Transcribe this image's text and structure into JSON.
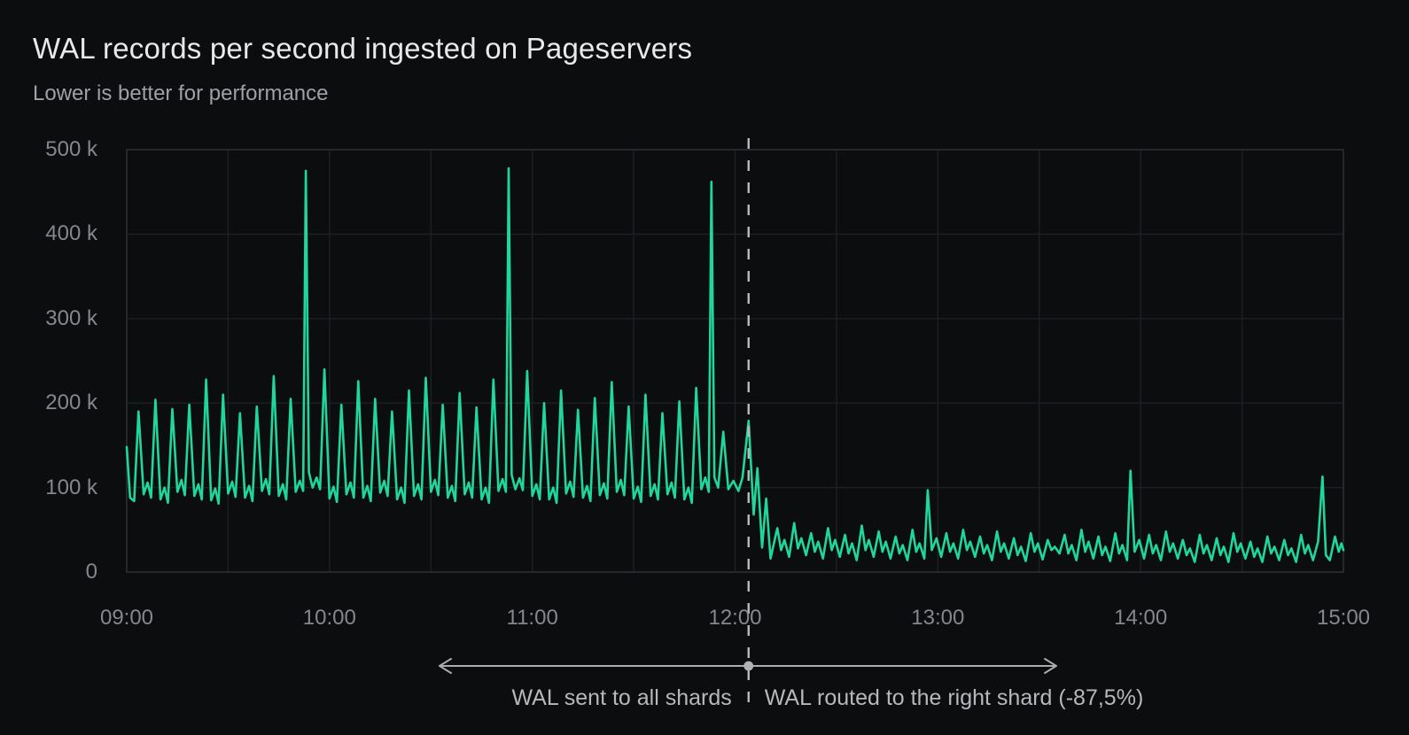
{
  "header": {
    "title": "WAL records per second ingested on Pageservers",
    "subtitle": "Lower is better for performance"
  },
  "colors": {
    "background": "#0c0d0e",
    "series_green": "#1fd79b",
    "gridline": "#1d2025",
    "plot_border": "#2b2e34",
    "axis_text": "#84878c",
    "annotation_gray": "#aaacaf",
    "divider_gray": "#b9bbbe"
  },
  "chart_data": {
    "type": "line",
    "title": "WAL records per second ingested on Pageservers",
    "subtitle": "Lower is better for performance",
    "xlabel": "",
    "ylabel": "",
    "grid": true,
    "legend": "none",
    "x_axis": {
      "unit": "time of day",
      "tick_labels": [
        "09:00",
        "10:00",
        "11:00",
        "12:00",
        "13:00",
        "14:00",
        "15:00"
      ],
      "tick_minutes": [
        0,
        60,
        120,
        180,
        240,
        300,
        360
      ],
      "gridline_interval_minutes": 30,
      "range_minutes": [
        0,
        360
      ]
    },
    "y_axis": {
      "unit": "records per second",
      "tick_labels": [
        "0",
        "100 k",
        "200 k",
        "300 k",
        "400 k",
        "500 k"
      ],
      "tick_values_k": [
        0,
        100,
        200,
        300,
        400,
        500
      ],
      "range_k": [
        0,
        500
      ]
    },
    "annotations": {
      "divider_minute": 184,
      "left_label": "WAL sent to all shards",
      "right_label": "WAL routed to the right shard (-87,5%)"
    },
    "series": [
      {
        "name": "WAL records per second",
        "color": "#1fd79b",
        "x_unit": "minutes after 09:00",
        "y_unit": "thousands of records/s",
        "points": [
          [
            0,
            148
          ],
          [
            1,
            88
          ],
          [
            2.2,
            84
          ],
          [
            3.5,
            190
          ],
          [
            5,
            92
          ],
          [
            6.2,
            106
          ],
          [
            7.2,
            88
          ],
          [
            8.5,
            204
          ],
          [
            10,
            86
          ],
          [
            11.2,
            100
          ],
          [
            12.2,
            82
          ],
          [
            13.5,
            193
          ],
          [
            15,
            95
          ],
          [
            16.2,
            109
          ],
          [
            17.2,
            91
          ],
          [
            18.5,
            198
          ],
          [
            20,
            90
          ],
          [
            21.2,
            104
          ],
          [
            22.2,
            86
          ],
          [
            23.5,
            228
          ],
          [
            25,
            85
          ],
          [
            26.2,
            99
          ],
          [
            27.2,
            81
          ],
          [
            28.5,
            210
          ],
          [
            30,
            93
          ],
          [
            31.2,
            107
          ],
          [
            32.2,
            89
          ],
          [
            33.5,
            188
          ],
          [
            35,
            88
          ],
          [
            36.2,
            102
          ],
          [
            37.2,
            84
          ],
          [
            38.5,
            196
          ],
          [
            40,
            96
          ],
          [
            41.2,
            110
          ],
          [
            42.2,
            92
          ],
          [
            43.5,
            232
          ],
          [
            45,
            90
          ],
          [
            46.2,
            104
          ],
          [
            47.2,
            86
          ],
          [
            48.5,
            205
          ],
          [
            50,
            95
          ],
          [
            51.2,
            108
          ],
          [
            52.2,
            96
          ],
          [
            53,
            475
          ],
          [
            53.9,
            118
          ],
          [
            55,
            100
          ],
          [
            56.2,
            112
          ],
          [
            57.2,
            98
          ],
          [
            58.5,
            240
          ],
          [
            60,
            87
          ],
          [
            61.2,
            101
          ],
          [
            62.2,
            83
          ],
          [
            63.5,
            198
          ],
          [
            65,
            92
          ],
          [
            66.2,
            106
          ],
          [
            67.2,
            88
          ],
          [
            68.5,
            226
          ],
          [
            70,
            88
          ],
          [
            71.2,
            102
          ],
          [
            72.2,
            84
          ],
          [
            73.5,
            205
          ],
          [
            75,
            94
          ],
          [
            76.2,
            108
          ],
          [
            77.2,
            90
          ],
          [
            78.5,
            190
          ],
          [
            80,
            86
          ],
          [
            81.2,
            100
          ],
          [
            82.2,
            82
          ],
          [
            83.5,
            215
          ],
          [
            85,
            90
          ],
          [
            86.2,
            104
          ],
          [
            87.2,
            86
          ],
          [
            88.5,
            230
          ],
          [
            90,
            95
          ],
          [
            91.2,
            109
          ],
          [
            92.2,
            91
          ],
          [
            93.5,
            198
          ],
          [
            95,
            88
          ],
          [
            96.2,
            102
          ],
          [
            97.2,
            84
          ],
          [
            98.5,
            212
          ],
          [
            100,
            92
          ],
          [
            101.2,
            106
          ],
          [
            102.2,
            88
          ],
          [
            103.5,
            195
          ],
          [
            105,
            86
          ],
          [
            106.2,
            100
          ],
          [
            107.2,
            82
          ],
          [
            108.5,
            228
          ],
          [
            110,
            96
          ],
          [
            111.2,
            110
          ],
          [
            112.2,
            95
          ],
          [
            113,
            478
          ],
          [
            113.9,
            115
          ],
          [
            115,
            98
          ],
          [
            116.2,
            111
          ],
          [
            117.2,
            97
          ],
          [
            118.5,
            238
          ],
          [
            120,
            90
          ],
          [
            121.2,
            104
          ],
          [
            122.2,
            86
          ],
          [
            123.5,
            200
          ],
          [
            125,
            86
          ],
          [
            126.2,
            100
          ],
          [
            127.2,
            82
          ],
          [
            128.5,
            215
          ],
          [
            130,
            93
          ],
          [
            131.2,
            107
          ],
          [
            132.2,
            89
          ],
          [
            133.5,
            192
          ],
          [
            135,
            88
          ],
          [
            136.2,
            102
          ],
          [
            137.2,
            84
          ],
          [
            138.5,
            206
          ],
          [
            140,
            91
          ],
          [
            141.2,
            105
          ],
          [
            142.2,
            87
          ],
          [
            143.5,
            225
          ],
          [
            145,
            95
          ],
          [
            146.2,
            109
          ],
          [
            147.2,
            91
          ],
          [
            148.5,
            196
          ],
          [
            150,
            87
          ],
          [
            151.2,
            101
          ],
          [
            152.2,
            83
          ],
          [
            153.5,
            210
          ],
          [
            155,
            90
          ],
          [
            156.2,
            104
          ],
          [
            157.2,
            86
          ],
          [
            158.5,
            188
          ],
          [
            160,
            92
          ],
          [
            161.2,
            106
          ],
          [
            162.2,
            88
          ],
          [
            163.5,
            202
          ],
          [
            165,
            86
          ],
          [
            166.2,
            100
          ],
          [
            167.2,
            82
          ],
          [
            168.5,
            218
          ],
          [
            170,
            98
          ],
          [
            171.2,
            112
          ],
          [
            172.2,
            95
          ],
          [
            173,
            462
          ],
          [
            173.9,
            112
          ],
          [
            175,
            100
          ],
          [
            176.5,
            166
          ],
          [
            178,
            98
          ],
          [
            179.5,
            108
          ],
          [
            181,
            96
          ],
          [
            182.2,
            112
          ],
          [
            184,
            179
          ],
          [
            185.5,
            68
          ],
          [
            186.6,
            123
          ],
          [
            188,
            29
          ],
          [
            189.2,
            87
          ],
          [
            190.5,
            16
          ],
          [
            192.5,
            52
          ],
          [
            193.6,
            26
          ],
          [
            194.6,
            38
          ],
          [
            196,
            18
          ],
          [
            197.5,
            58
          ],
          [
            198.6,
            28
          ],
          [
            199.6,
            40
          ],
          [
            201,
            20
          ],
          [
            202.5,
            46
          ],
          [
            203.6,
            24
          ],
          [
            204.6,
            36
          ],
          [
            206,
            16
          ],
          [
            207.5,
            52
          ],
          [
            208.6,
            26
          ],
          [
            209.6,
            38
          ],
          [
            211,
            18
          ],
          [
            212.5,
            44
          ],
          [
            213.6,
            22
          ],
          [
            214.6,
            34
          ],
          [
            216,
            14
          ],
          [
            217.5,
            55
          ],
          [
            218.6,
            26
          ],
          [
            219.6,
            38
          ],
          [
            221,
            18
          ],
          [
            222.5,
            48
          ],
          [
            223.6,
            24
          ],
          [
            224.6,
            36
          ],
          [
            226,
            16
          ],
          [
            227.5,
            42
          ],
          [
            228.6,
            22
          ],
          [
            229.6,
            32
          ],
          [
            231,
            14
          ],
          [
            232.5,
            50
          ],
          [
            233.6,
            24
          ],
          [
            234.6,
            34
          ],
          [
            236,
            16
          ],
          [
            237,
            97
          ],
          [
            238.2,
            26
          ],
          [
            239.6,
            40
          ],
          [
            241,
            18
          ],
          [
            242.5,
            46
          ],
          [
            243.6,
            24
          ],
          [
            244.6,
            34
          ],
          [
            246,
            16
          ],
          [
            247.5,
            50
          ],
          [
            248.6,
            26
          ],
          [
            249.6,
            36
          ],
          [
            251,
            18
          ],
          [
            252.5,
            42
          ],
          [
            253.6,
            22
          ],
          [
            254.6,
            32
          ],
          [
            256,
            14
          ],
          [
            257.5,
            48
          ],
          [
            258.6,
            24
          ],
          [
            259.6,
            34
          ],
          [
            261,
            16
          ],
          [
            262.5,
            40
          ],
          [
            263.6,
            20
          ],
          [
            264.6,
            30
          ],
          [
            266,
            13
          ],
          [
            267.5,
            46
          ],
          [
            268.6,
            24
          ],
          [
            269.6,
            34
          ],
          [
            271,
            15
          ],
          [
            272.5,
            38
          ],
          [
            273.6,
            26
          ],
          [
            274.6,
            30
          ],
          [
            276,
            22
          ],
          [
            277.5,
            44
          ],
          [
            278.6,
            22
          ],
          [
            279.6,
            32
          ],
          [
            281,
            14
          ],
          [
            282.5,
            50
          ],
          [
            283.6,
            24
          ],
          [
            284.6,
            36
          ],
          [
            286,
            16
          ],
          [
            287.5,
            42
          ],
          [
            288.6,
            20
          ],
          [
            289.6,
            30
          ],
          [
            291,
            13
          ],
          [
            292.5,
            46
          ],
          [
            293.6,
            22
          ],
          [
            294.6,
            32
          ],
          [
            296,
            14
          ],
          [
            297,
            120
          ],
          [
            298.2,
            24
          ],
          [
            299.6,
            38
          ],
          [
            301,
            16
          ],
          [
            302.5,
            44
          ],
          [
            303.6,
            22
          ],
          [
            304.6,
            32
          ],
          [
            306,
            14
          ],
          [
            307.5,
            48
          ],
          [
            308.6,
            24
          ],
          [
            309.6,
            34
          ],
          [
            311,
            16
          ],
          [
            312.5,
            38
          ],
          [
            313.6,
            20
          ],
          [
            314.6,
            28
          ],
          [
            316,
            12
          ],
          [
            317.5,
            44
          ],
          [
            318.6,
            22
          ],
          [
            319.6,
            32
          ],
          [
            321,
            14
          ],
          [
            322.5,
            40
          ],
          [
            323.6,
            20
          ],
          [
            324.6,
            30
          ],
          [
            326,
            12
          ],
          [
            327.5,
            46
          ],
          [
            328.6,
            24
          ],
          [
            329.6,
            34
          ],
          [
            331,
            16
          ],
          [
            332.5,
            36
          ],
          [
            333.6,
            18
          ],
          [
            334.6,
            28
          ],
          [
            336,
            12
          ],
          [
            337.5,
            42
          ],
          [
            338.6,
            22
          ],
          [
            339.6,
            30
          ],
          [
            341,
            14
          ],
          [
            342.5,
            38
          ],
          [
            343.6,
            20
          ],
          [
            344.6,
            28
          ],
          [
            346,
            12
          ],
          [
            347.5,
            44
          ],
          [
            348.6,
            22
          ],
          [
            349.6,
            32
          ],
          [
            351,
            14
          ],
          [
            352.5,
            36
          ],
          [
            353.8,
            113
          ],
          [
            354.8,
            20
          ],
          [
            356,
            14
          ],
          [
            357.5,
            42
          ],
          [
            358.6,
            24
          ],
          [
            359.4,
            34
          ],
          [
            360,
            26
          ]
        ]
      }
    ]
  }
}
